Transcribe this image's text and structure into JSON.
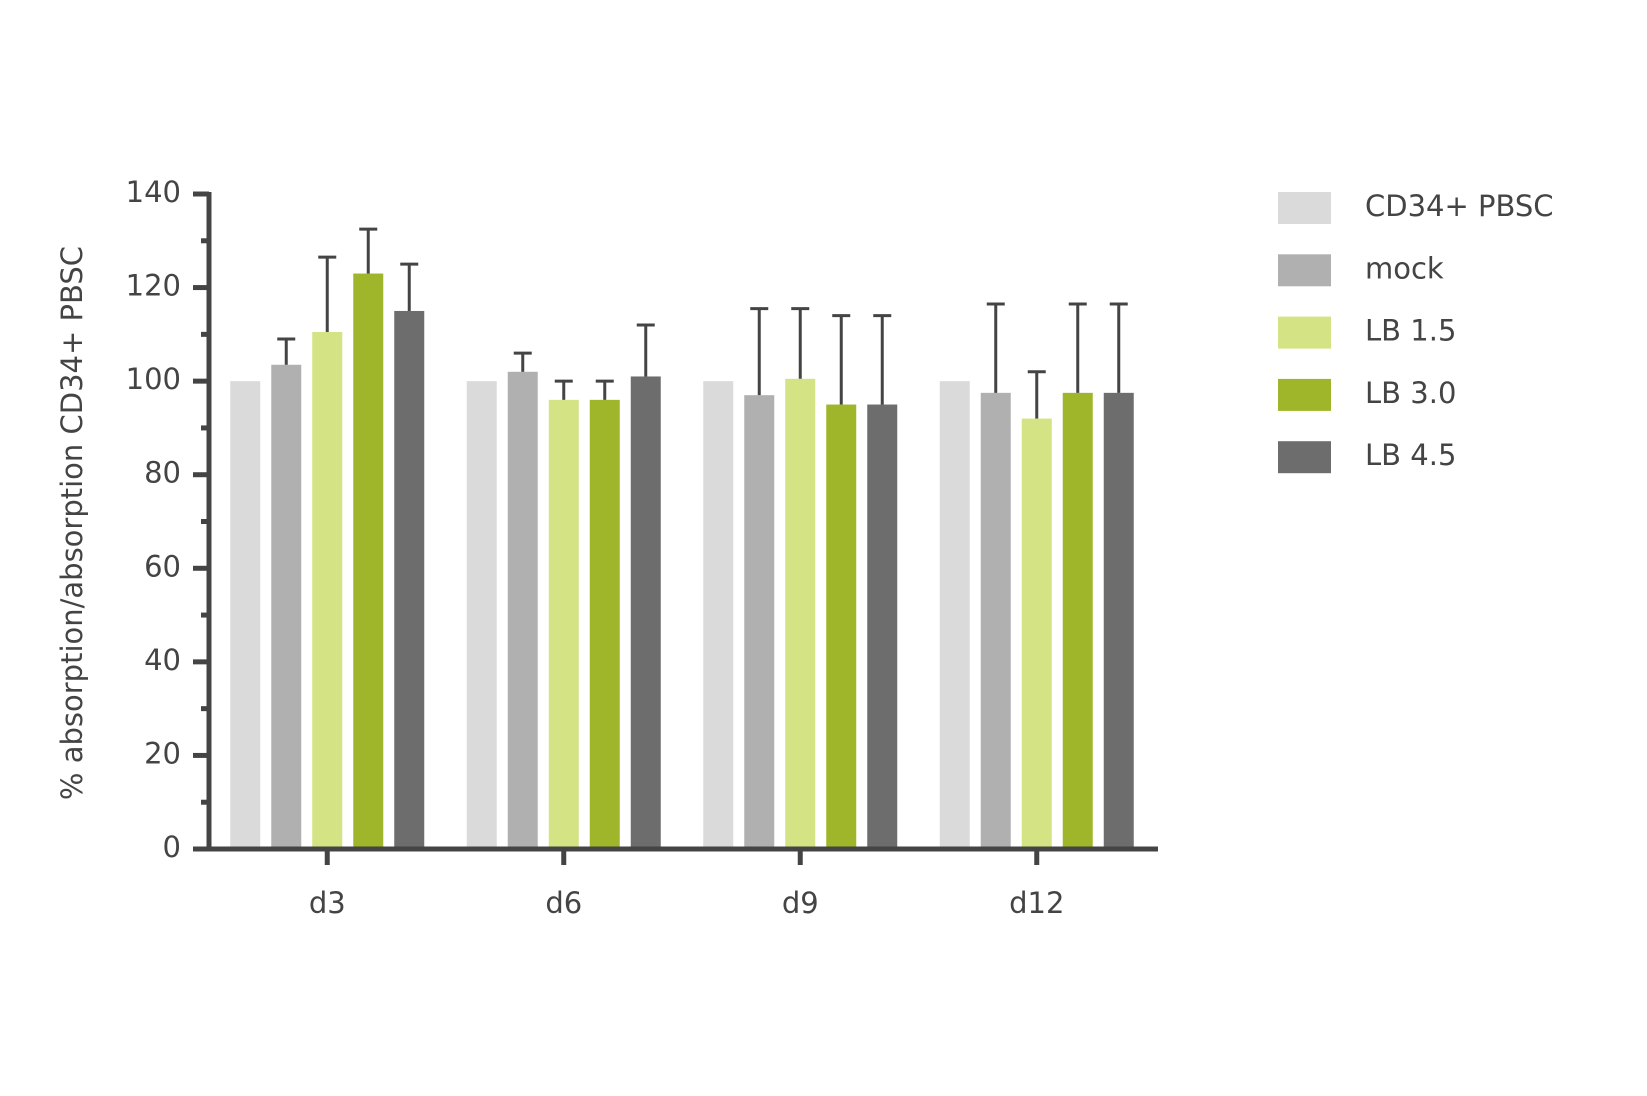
{
  "chart_data": {
    "type": "bar",
    "y_label": "% absorption/absorption CD34+ PBSC",
    "categories": [
      "d3",
      "d6",
      "d9",
      "d12"
    ],
    "series": [
      {
        "name": "CD34+ PBSC",
        "color": "#dadada",
        "values": [
          100,
          100,
          100,
          100
        ]
      },
      {
        "name": "mock",
        "color": "#b0b0b0",
        "values": [
          103.5,
          102,
          97,
          97.5
        ],
        "errors": [
          5.5,
          4,
          18.5,
          19
        ]
      },
      {
        "name": "LB 1.5",
        "color": "#d4e384",
        "values": [
          110.5,
          96,
          100.5,
          92
        ],
        "errors": [
          16,
          4,
          15,
          10
        ]
      },
      {
        "name": "LB 3.0",
        "color": "#9fb52a",
        "values": [
          123,
          96,
          95,
          97.5
        ],
        "errors": [
          9.5,
          4,
          19,
          19
        ]
      },
      {
        "name": "LB 4.5",
        "color": "#6d6d6d",
        "values": [
          115,
          101,
          95,
          97.5
        ],
        "errors": [
          10,
          11,
          19,
          19
        ]
      }
    ],
    "ylim": [
      0,
      140
    ],
    "yticks": [
      0,
      20,
      40,
      60,
      80,
      100,
      120,
      140
    ],
    "legend": "right"
  }
}
